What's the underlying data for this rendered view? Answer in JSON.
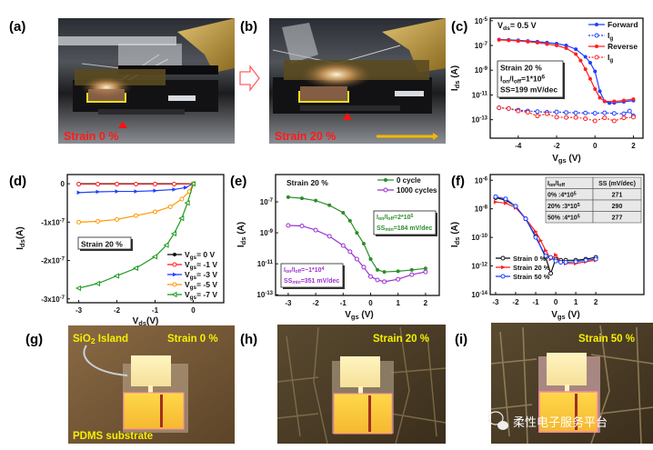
{
  "panels": {
    "a": {
      "label": "(a)",
      "caption": "Strain 0 %"
    },
    "b": {
      "label": "(b)",
      "caption": "Strain 20 %"
    },
    "c": {
      "label": "(c)"
    },
    "d": {
      "label": "(d)"
    },
    "e": {
      "label": "(e)"
    },
    "f": {
      "label": "(f)"
    },
    "g": {
      "label": "(g)",
      "caption": "Strain 0 %",
      "island": "SiO_{2} Island",
      "substrate": "PDMS substrate"
    },
    "h": {
      "label": "(h)",
      "caption": "Strain 20 %"
    },
    "i": {
      "label": "(i)",
      "caption": "Strain 50 %"
    }
  },
  "watermark": "柔性电子服务平台",
  "colors": {
    "caption_red": "#ff1a1a",
    "caption_yellow": "#f5f000",
    "arrow_orange": "#f5b800"
  },
  "chart_data": [
    {
      "id": "c",
      "type": "line",
      "yscale": "log",
      "xlabel": "V_{gs} (V)",
      "ylabel": "I_{ds} (A)",
      "xlim": [
        -5.46,
        2.5
      ],
      "ylim": [
        3.2e-15,
        1.6e-05
      ],
      "xticks": [
        -4,
        -2,
        0,
        2
      ],
      "yticks": [
        1e-05,
        1e-07,
        1e-09,
        1e-11,
        1e-13
      ],
      "ytick_labels": [
        "10^{-5}",
        "10^{-7}",
        "10^{-9}",
        "10^{-11}",
        "10^{-13}"
      ],
      "annotations": [
        "V_{ds}= 0.5 V"
      ],
      "box": [
        "Strain 20 %",
        "I_{on}/I_{off}=1*10^{6}",
        "SS=199 mV/dec"
      ],
      "legend_position": "top-right",
      "series": [
        {
          "name": "Forward",
          "color": "#1f3fff",
          "marker": "circle",
          "dashed": false,
          "x": [
            -5,
            -4.5,
            -4,
            -3.5,
            -3,
            -2.5,
            -2,
            -1.5,
            -1,
            -0.5,
            -0.25,
            0,
            0.25,
            0.5,
            0.75,
            1,
            1.5,
            2
          ],
          "y": [
            3e-07,
            2.8e-07,
            2.6e-07,
            2.3e-07,
            2e-07,
            1.7e-07,
            1.4e-07,
            1e-07,
            5e-08,
            1.2e-08,
            4e-09,
            8e-10,
            2e-11,
            3e-12,
            2.2e-12,
            2.3e-12,
            2.8e-12,
            3.5e-12
          ]
        },
        {
          "name": "I_{g}",
          "color": "#1f3fff",
          "marker": "circle-open",
          "dashed": true,
          "x": [
            -5,
            -4.5,
            -4,
            -3.5,
            -3,
            -2.5,
            -2,
            -1.5,
            -1,
            -0.5,
            0,
            0.5,
            1,
            1.5,
            1.8,
            2
          ],
          "y": [
            9e-13,
            8e-13,
            6e-13,
            5e-13,
            4.5e-13,
            4e-13,
            4.2e-13,
            3.8e-13,
            3.6e-13,
            3.5e-13,
            3.3e-13,
            3.6e-13,
            3.2e-13,
            3e-13,
            5e-13,
            2e-13
          ]
        },
        {
          "name": "Reverse",
          "color": "#ff2020",
          "marker": "circle",
          "dashed": false,
          "x": [
            -5,
            -4.5,
            -4,
            -3.5,
            -3,
            -2.5,
            -2,
            -1.5,
            -1,
            -0.75,
            -0.5,
            -0.25,
            0,
            0.25,
            0.5,
            1,
            1.5,
            2
          ],
          "y": [
            2.8e-07,
            2.6e-07,
            2.3e-07,
            2e-07,
            1.7e-07,
            1.3e-07,
            1e-07,
            6e-08,
            2e-08,
            6e-09,
            1.2e-09,
            2e-10,
            3e-11,
            6e-12,
            3e-12,
            3e-12,
            3.6e-12,
            4.5e-12
          ]
        },
        {
          "name": "I_{g}",
          "color": "#ff2020",
          "marker": "circle-open",
          "dashed": true,
          "x": [
            -5,
            -4.5,
            -4,
            -3.5,
            -3,
            -2.5,
            -2,
            -1.5,
            -1,
            -0.5,
            0,
            0.5,
            1,
            1.5,
            2
          ],
          "y": [
            9e-13,
            8e-13,
            5e-13,
            4e-13,
            2e-13,
            3e-13,
            1.6e-13,
            1.5e-13,
            1.5e-13,
            1.2e-13,
            8e-14,
            1.4e-13,
            8e-14,
            1.4e-13,
            1.6e-13
          ]
        }
      ]
    },
    {
      "id": "d",
      "type": "line",
      "yscale": "linear",
      "xlabel": "V_{ds}(V)",
      "ylabel": "I_{ds}(A)",
      "xlim": [
        -3.3,
        0.8
      ],
      "ylim": [
        -3.1e-07,
        2.4e-08
      ],
      "xticks": [
        -3,
        -2,
        -1,
        0
      ],
      "yticks": [
        0,
        -1e-07,
        -2e-07,
        -3e-07
      ],
      "ytick_labels": [
        "0",
        "-1x10^{-7}",
        "-2x10^{-7}",
        "-3x10^{-7}"
      ],
      "box": [
        "Strain 20 %"
      ],
      "legend_position": "bottom-right",
      "series": [
        {
          "name": "V_{gs}= 0 V",
          "color": "#111111",
          "marker": "circle",
          "x": [
            -3,
            -2,
            -1,
            0
          ],
          "y": [
            0,
            0,
            0,
            0
          ]
        },
        {
          "name": "V_{gs}= -1 V",
          "color": "#ff2020",
          "marker": "circle-open",
          "x": [
            -3,
            -2.5,
            -2,
            -1.5,
            -1,
            -0.5,
            0
          ],
          "y": [
            -1e-09,
            -1e-09,
            -1e-09,
            -1e-09,
            -1e-09,
            -1e-09,
            0
          ]
        },
        {
          "name": "V_{gs}= -3 V",
          "color": "#1f3fff",
          "marker": "tri-right",
          "x": [
            -3,
            -2.5,
            -2,
            -1.5,
            -1,
            -0.5,
            -0.2,
            0
          ],
          "y": [
            -2.3e-08,
            -2.1e-08,
            -2e-08,
            -2e-08,
            -1.8e-08,
            -1.5e-08,
            -1e-08,
            0
          ]
        },
        {
          "name": "V_{gs}= -5 V",
          "color": "#ff9900",
          "marker": "circle-open",
          "x": [
            -3,
            -2.5,
            -2,
            -1.5,
            -1,
            -0.6,
            -0.3,
            -0.1,
            0
          ],
          "y": [
            -1e-07,
            -9.8e-08,
            -9.3e-08,
            -8.3e-08,
            -7.3e-08,
            -6e-08,
            -4e-08,
            -2e-08,
            0
          ]
        },
        {
          "name": "V_{gs}= -7 V",
          "color": "#1e9a1e",
          "marker": "tri-left",
          "x": [
            -3,
            -2.5,
            -2,
            -1.5,
            -1,
            -0.7,
            -0.5,
            -0.3,
            -0.15,
            0
          ],
          "y": [
            -2.72e-07,
            -2.6e-07,
            -2.4e-07,
            -2.2e-07,
            -1.9e-07,
            -1.6e-07,
            -1.3e-07,
            -9e-08,
            -5e-08,
            0
          ]
        }
      ]
    },
    {
      "id": "e",
      "type": "line",
      "yscale": "log",
      "xlabel": "V_{gs} (V)",
      "ylabel": "I_{ds} (A)",
      "xlim": [
        -3.46,
        2.5
      ],
      "ylim": [
        9e-14,
        5.8e-06
      ],
      "xticks": [
        -3,
        -2,
        -1,
        0,
        1,
        2
      ],
      "yticks": [
        1e-07,
        1e-09,
        1e-11,
        1e-13
      ],
      "ytick_labels": [
        "10^{-7}",
        "10^{-9}",
        "10^{-11}",
        "10^{-13}"
      ],
      "annotations": [
        "Strain 20 %"
      ],
      "box_green": [
        "I_{on}/I_{off}=2*10^{5}",
        "SS_{min}=184 mV/dec"
      ],
      "box_purple": [
        "I_{on}/I_{off}=~1*10^{4}",
        "SS_{min}=351 mV/dec"
      ],
      "legend_position": "top-right",
      "series": [
        {
          "name": "0 cycle",
          "color": "#2a8f2a",
          "marker": "circle",
          "x": [
            -3,
            -2.5,
            -2,
            -1.5,
            -1,
            -0.75,
            -0.5,
            -0.25,
            0,
            0.25,
            0.5,
            1,
            1.5,
            2
          ],
          "y": [
            2e-07,
            1.7e-07,
            1.2e-07,
            6e-08,
            2e-08,
            6e-09,
            1e-09,
            2e-10,
            2e-11,
            4e-12,
            3e-12,
            3.3e-12,
            4e-12,
            5e-12
          ]
        },
        {
          "name": "1000 cycles",
          "color": "#9b30d0",
          "marker": "circle-open",
          "x": [
            -3,
            -2.5,
            -2,
            -1.5,
            -1,
            -0.75,
            -0.5,
            -0.25,
            0,
            0.25,
            0.5,
            1,
            1.5,
            2
          ],
          "y": [
            3e-09,
            2.8e-09,
            1.5e-09,
            6e-10,
            1.5e-10,
            6e-11,
            2e-11,
            6e-12,
            1.5e-12,
            9e-13,
            7e-13,
            1e-12,
            2e-12,
            3e-12
          ]
        }
      ]
    },
    {
      "id": "f",
      "type": "line",
      "yscale": "log",
      "xlabel": "V_{gs} (V)",
      "ylabel": "I_{ds} (A)",
      "xlim": [
        -3.27,
        4.4
      ],
      "ylim": [
        1e-14,
        2.5e-06
      ],
      "xticks": [
        -3,
        -2,
        -1,
        0,
        1,
        2
      ],
      "yticks": [
        1e-06,
        1e-08,
        1e-10,
        1e-12,
        1e-14
      ],
      "ytick_labels": [
        "10^{-6}",
        "10^{-8}",
        "10^{-10}",
        "10^{-12}",
        "10^{-14}"
      ],
      "table": {
        "headers": [
          "I_{on}/I_{off}",
          "SS (mV/dec)"
        ],
        "rows": [
          [
            "0% :4*10^{5}",
            "271"
          ],
          [
            "20% :3*10^{5}",
            "290"
          ],
          [
            "50% :4*10^{5}",
            "277"
          ]
        ]
      },
      "legend_position": "bottom-left",
      "series": [
        {
          "name": "Strain 0 %",
          "color": "#111111",
          "marker": "circle-open",
          "x": [
            -3,
            -2.5,
            -2,
            -1.5,
            -1,
            -0.5,
            -0.25,
            0,
            0.25,
            0.5,
            1,
            1.5,
            2
          ],
          "y": [
            6e-08,
            4e-08,
            1.5e-08,
            2e-09,
            1.2e-10,
            4e-12,
            3e-13,
            3e-12,
            2.5e-12,
            2.5e-12,
            2.5e-12,
            3e-12,
            4e-12
          ]
        },
        {
          "name": "Strain 20 %",
          "color": "#ff2020",
          "marker": "tri-right",
          "x": [
            -3,
            -2.5,
            -2,
            -1.5,
            -1,
            -0.75,
            -0.5,
            -0.25,
            0,
            0.25,
            0.5,
            1,
            1.5,
            2
          ],
          "y": [
            3e-08,
            2.5e-08,
            1.2e-08,
            2e-09,
            2.5e-10,
            6e-11,
            1.2e-11,
            3e-12,
            6e-12,
            2e-12,
            1.5e-12,
            1.5e-12,
            2e-12,
            2.5e-12
          ]
        },
        {
          "name": "Strain 50 %",
          "color": "#1f3fff",
          "marker": "circle-open",
          "x": [
            -3,
            -2.5,
            -2,
            -1.5,
            -1,
            -0.5,
            -0.25,
            0,
            0.25,
            0.5,
            1,
            1.5,
            2
          ],
          "y": [
            7e-08,
            5e-08,
            1.5e-08,
            2e-09,
            1e-10,
            5e-12,
            4e-12,
            2.2e-12,
            1.8e-12,
            1.8e-12,
            2e-12,
            2.5e-12,
            3e-12
          ]
        }
      ]
    }
  ]
}
